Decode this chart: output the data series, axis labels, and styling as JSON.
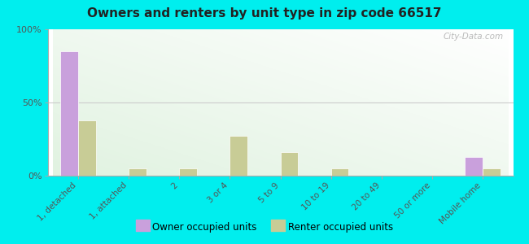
{
  "title": "Owners and renters by unit type in zip code 66517",
  "categories": [
    "1, detached",
    "1, attached",
    "2",
    "3 or 4",
    "5 to 9",
    "10 to 19",
    "20 to 49",
    "50 or more",
    "Mobile home"
  ],
  "owner_values": [
    85,
    0,
    0,
    0,
    0,
    0,
    0,
    0,
    13
  ],
  "renter_values": [
    38,
    5,
    5,
    27,
    16,
    5,
    0,
    0,
    5
  ],
  "owner_color": "#c9a0dc",
  "renter_color": "#c8cc96",
  "outer_bg": "#00eeee",
  "ylim": [
    0,
    100
  ],
  "yticks": [
    0,
    50,
    100
  ],
  "ytick_labels": [
    "0%",
    "50%",
    "100%"
  ],
  "watermark": "City-Data.com",
  "legend_owner": "Owner occupied units",
  "legend_renter": "Renter occupied units"
}
